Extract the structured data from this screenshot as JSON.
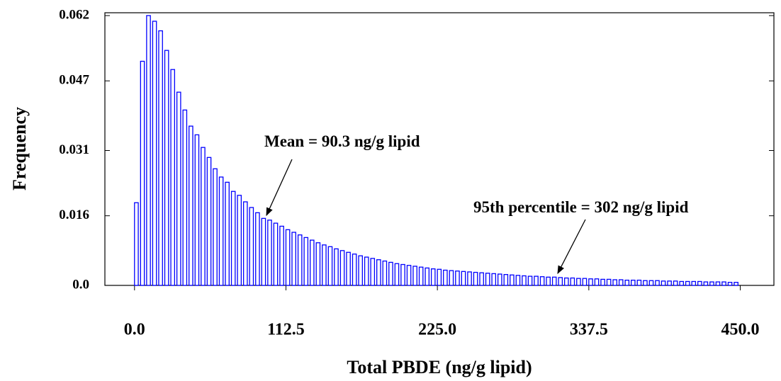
{
  "chart_data": {
    "type": "histogram",
    "xlabel": "Total PBDE (ng/g lipid)",
    "ylabel": "Frequency",
    "bins": [
      0,
      4.5,
      9,
      13.5,
      18,
      22.5,
      27,
      31.5,
      36,
      40.5,
      45,
      49.5,
      54,
      58.5,
      63,
      67.5,
      72,
      76.5,
      81,
      85.5,
      90,
      94.5,
      99,
      103.5,
      108,
      112.5,
      117,
      121.5,
      126,
      130.5,
      135,
      139.5,
      144,
      148.5,
      153,
      157.5,
      162,
      166.5,
      171,
      175.5,
      180,
      184.5,
      189,
      193.5,
      198,
      202.5,
      207,
      211.5,
      216,
      220.5,
      225,
      229.5,
      234,
      238.5,
      243,
      247.5,
      252,
      256.5,
      261,
      265.5,
      270,
      274.5,
      279,
      283.5,
      288,
      292.5,
      297,
      301.5,
      306,
      310.5,
      315,
      319.5,
      324,
      328.5,
      333,
      337.5,
      342,
      346.5,
      351,
      355.5,
      360,
      364.5,
      369,
      373.5,
      378,
      382.5,
      387,
      391.5,
      396,
      400.5,
      405,
      409.5,
      414,
      418.5,
      423,
      427.5,
      432,
      436.5,
      441,
      445.5,
      450
    ],
    "values": [
      0.019,
      0.0515,
      0.062,
      0.0607,
      0.0585,
      0.054,
      0.0496,
      0.0444,
      0.0403,
      0.0366,
      0.0346,
      0.0317,
      0.0294,
      0.0268,
      0.0249,
      0.0237,
      0.0216,
      0.0207,
      0.0192,
      0.0179,
      0.0167,
      0.0154,
      0.015,
      0.0143,
      0.0136,
      0.0128,
      0.0122,
      0.0116,
      0.011,
      0.0104,
      0.0098,
      0.0093,
      0.0089,
      0.0084,
      0.008,
      0.0076,
      0.0072,
      0.0068,
      0.0065,
      0.0062,
      0.0059,
      0.0056,
      0.0053,
      0.005,
      0.0048,
      0.0046,
      0.0044,
      0.0042,
      0.004,
      0.0038,
      0.0037,
      0.0035,
      0.0034,
      0.0033,
      0.0032,
      0.0031,
      0.003,
      0.0029,
      0.0028,
      0.0027,
      0.0026,
      0.0025,
      0.0024,
      0.0023,
      0.0022,
      0.0021,
      0.0021,
      0.002,
      0.0019,
      0.0019,
      0.0018,
      0.0017,
      0.0017,
      0.0016,
      0.0016,
      0.0015,
      0.0015,
      0.0014,
      0.0014,
      0.0013,
      0.0013,
      0.0012,
      0.0012,
      0.0012,
      0.0011,
      0.0011,
      0.0011,
      0.001,
      0.001,
      0.001,
      0.0009,
      0.0009,
      0.0009,
      0.0009,
      0.0008,
      0.0008,
      0.0008,
      0.0008,
      0.0007,
      0.0007
    ],
    "color": "#0000ff",
    "xlim": [
      -22,
      475
    ],
    "xticks": [
      {
        "value": 0,
        "label": "0.0"
      },
      112.5,
      {
        "value": 225,
        "label": "225.0"
      },
      337.5,
      {
        "value": 450,
        "label": "450.0"
      }
    ],
    "ylim": [
      0,
      0.062
    ],
    "yticks": [
      {
        "value": 0,
        "label": "0.0"
      },
      0.016,
      0.031,
      0.047,
      0.062
    ],
    "annotations": [
      "Mean = 90.3 ng/g lipid",
      "95th percentile = 302 ng/g lipid"
    ]
  }
}
